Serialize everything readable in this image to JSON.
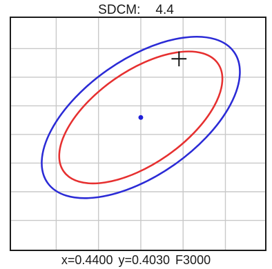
{
  "header": {
    "sdcm_label": "SDCM:",
    "sdcm_value": "4.4"
  },
  "readout": {
    "x_text": "x=0.4400",
    "y_text": "y=0.4030",
    "reference": "F3000"
  },
  "colors": {
    "outer_ellipse": "#2b2bd6",
    "inner_ellipse": "#e63030",
    "center_point": "#1f1fd8",
    "grid": "#c8c8c8",
    "frame": "#1b1b1b",
    "cursor": "#111111"
  },
  "icons": {
    "cursor": "crosshair-icon"
  }
}
